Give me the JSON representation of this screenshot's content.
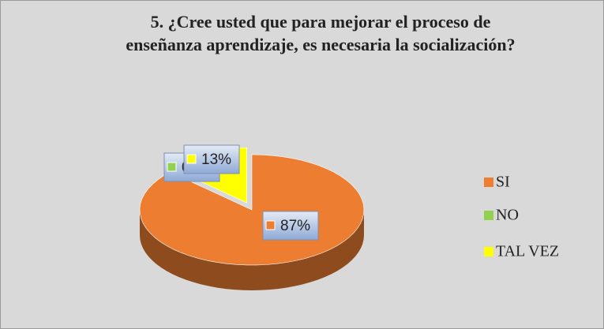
{
  "chart_data": {
    "type": "pie",
    "title": "5. ¿Cree usted que para mejorar el proceso de enseñanza aprendizaje, es necesaria la socialización?",
    "categories": [
      "SI",
      "NO",
      "TAL VEZ"
    ],
    "values": [
      87,
      0,
      13
    ],
    "value_labels": [
      "87%",
      "0%",
      "13%"
    ],
    "colors": [
      "#ed7d31",
      "#92d050",
      "#ffff00"
    ],
    "legend": "right"
  }
}
